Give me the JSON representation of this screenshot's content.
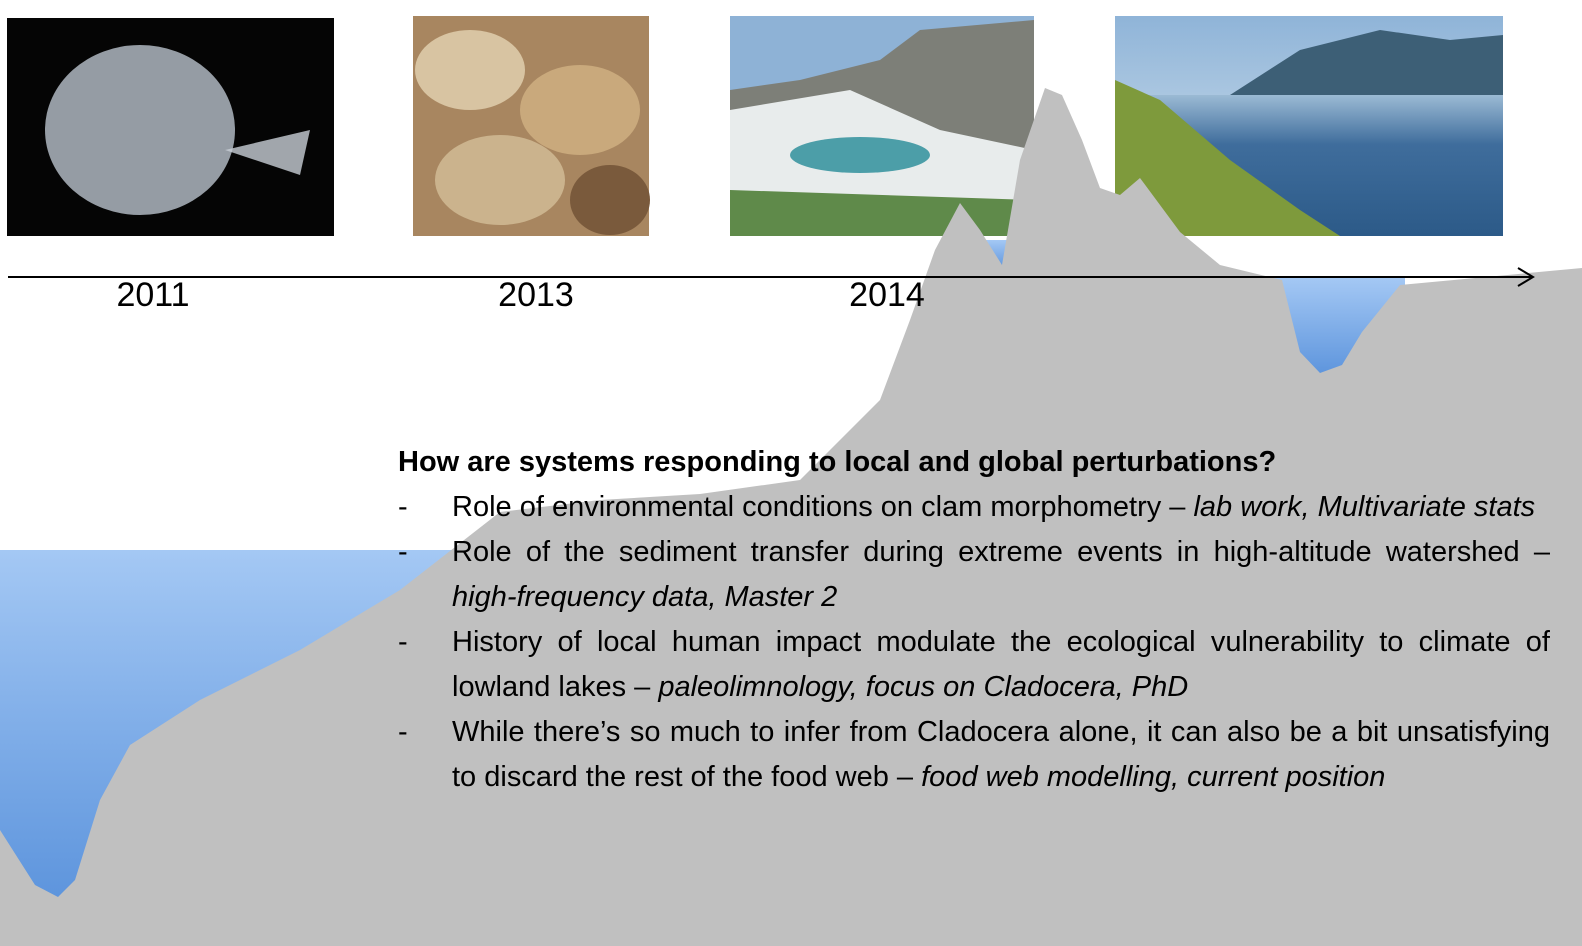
{
  "timeline": {
    "years": [
      "2011",
      "2013",
      "2014"
    ]
  },
  "content": {
    "heading": "How are systems responding to local and global perturbations?",
    "bullets": [
      {
        "marker": "-",
        "parts": [
          {
            "text": "Role of environmental conditions on clam morphometry – ",
            "italic": false
          },
          {
            "text": "lab work, Multivariate stats",
            "italic": true
          }
        ]
      },
      {
        "marker": "-",
        "parts": [
          {
            "text": "Role of the sediment transfer during extreme events in high-altitude watershed – ",
            "italic": false
          },
          {
            "text": "high-frequency data, Master 2",
            "italic": true
          }
        ]
      },
      {
        "marker": "-",
        "parts": [
          {
            "text": "History of local human impact modulate the ecological vulnerability to climate of lowland lakes – ",
            "italic": false
          },
          {
            "text": "paleolimnology, focus on Cladocera, PhD",
            "italic": true
          }
        ]
      },
      {
        "marker": "-",
        "parts": [
          {
            "text": "While there’s so much to infer from Cladocera alone, it can also be a bit unsatisfying to discard the rest of the food web – ",
            "italic": false
          },
          {
            "text": "food web modelling, current position",
            "italic": true
          }
        ]
      }
    ]
  }
}
